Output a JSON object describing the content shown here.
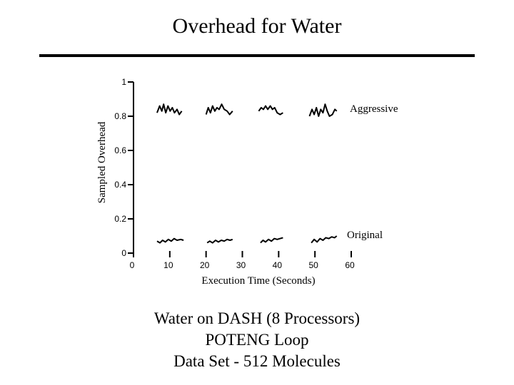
{
  "header": {
    "title": "Overhead for Water"
  },
  "chart_data": {
    "type": "line",
    "title": "",
    "xlabel": "Execution Time (Seconds)",
    "ylabel": "Sampled Overhead",
    "xlim": [
      0,
      60
    ],
    "ylim": [
      0,
      1
    ],
    "xticks": [
      "0",
      "10",
      "20",
      "30",
      "40",
      "50",
      "60"
    ],
    "yticks": [
      "0",
      "0.2",
      "0.4",
      "0.6",
      "0.8",
      "1"
    ],
    "grid": false,
    "series": [
      {
        "name": "Aggressive",
        "segments": [
          [
            [
              6.5,
              0.82
            ],
            [
              7.2,
              0.86
            ],
            [
              7.8,
              0.83
            ],
            [
              8.3,
              0.87
            ],
            [
              8.9,
              0.82
            ],
            [
              9.5,
              0.86
            ],
            [
              10.1,
              0.83
            ],
            [
              10.7,
              0.85
            ],
            [
              11.3,
              0.82
            ],
            [
              12.0,
              0.84
            ],
            [
              12.6,
              0.81
            ],
            [
              13.3,
              0.83
            ]
          ],
          [
            [
              20.0,
              0.81
            ],
            [
              20.6,
              0.85
            ],
            [
              21.2,
              0.82
            ],
            [
              21.8,
              0.86
            ],
            [
              22.4,
              0.83
            ],
            [
              23.0,
              0.85
            ],
            [
              23.6,
              0.84
            ],
            [
              24.3,
              0.87
            ],
            [
              25.0,
              0.84
            ],
            [
              25.8,
              0.83
            ],
            [
              26.5,
              0.81
            ],
            [
              27.3,
              0.83
            ]
          ],
          [
            [
              34.5,
              0.83
            ],
            [
              35.2,
              0.85
            ],
            [
              35.8,
              0.84
            ],
            [
              36.4,
              0.86
            ],
            [
              37.0,
              0.84
            ],
            [
              37.7,
              0.86
            ],
            [
              38.3,
              0.84
            ],
            [
              38.9,
              0.85
            ],
            [
              39.6,
              0.82
            ],
            [
              40.4,
              0.81
            ],
            [
              41.2,
              0.82
            ]
          ],
          [
            [
              48.5,
              0.8
            ],
            [
              49.2,
              0.84
            ],
            [
              49.8,
              0.81
            ],
            [
              50.4,
              0.85
            ],
            [
              51.0,
              0.8
            ],
            [
              51.6,
              0.84
            ],
            [
              52.2,
              0.82
            ],
            [
              52.8,
              0.87
            ],
            [
              53.4,
              0.83
            ],
            [
              54.0,
              0.8
            ],
            [
              54.8,
              0.81
            ],
            [
              55.5,
              0.84
            ],
            [
              56.0,
              0.83
            ]
          ]
        ]
      },
      {
        "name": "Original",
        "segments": [
          [
            [
              6.5,
              0.07
            ],
            [
              7.3,
              0.06
            ],
            [
              8.0,
              0.075
            ],
            [
              8.8,
              0.065
            ],
            [
              9.6,
              0.08
            ],
            [
              10.4,
              0.07
            ],
            [
              11.2,
              0.085
            ],
            [
              12.0,
              0.075
            ],
            [
              13.0,
              0.08
            ],
            [
              13.8,
              0.075
            ]
          ],
          [
            [
              20.3,
              0.06
            ],
            [
              21.0,
              0.07
            ],
            [
              21.8,
              0.06
            ],
            [
              22.6,
              0.075
            ],
            [
              23.4,
              0.065
            ],
            [
              24.2,
              0.075
            ],
            [
              25.0,
              0.07
            ],
            [
              25.8,
              0.08
            ],
            [
              26.6,
              0.075
            ],
            [
              27.3,
              0.08
            ]
          ],
          [
            [
              35.0,
              0.06
            ],
            [
              35.7,
              0.075
            ],
            [
              36.4,
              0.065
            ],
            [
              37.2,
              0.08
            ],
            [
              38.0,
              0.07
            ],
            [
              38.8,
              0.085
            ],
            [
              39.6,
              0.08
            ],
            [
              40.4,
              0.085
            ],
            [
              41.2,
              0.09
            ]
          ],
          [
            [
              49.0,
              0.06
            ],
            [
              49.8,
              0.08
            ],
            [
              50.6,
              0.065
            ],
            [
              51.4,
              0.085
            ],
            [
              52.2,
              0.075
            ],
            [
              53.0,
              0.09
            ],
            [
              53.8,
              0.085
            ],
            [
              54.6,
              0.095
            ],
            [
              55.4,
              0.09
            ],
            [
              56.0,
              0.1
            ]
          ]
        ]
      }
    ]
  },
  "caption": {
    "line1": "Water on DASH (8 Processors)",
    "line2": "POTENG Loop",
    "line3": "Data Set - 512 Molecules"
  }
}
